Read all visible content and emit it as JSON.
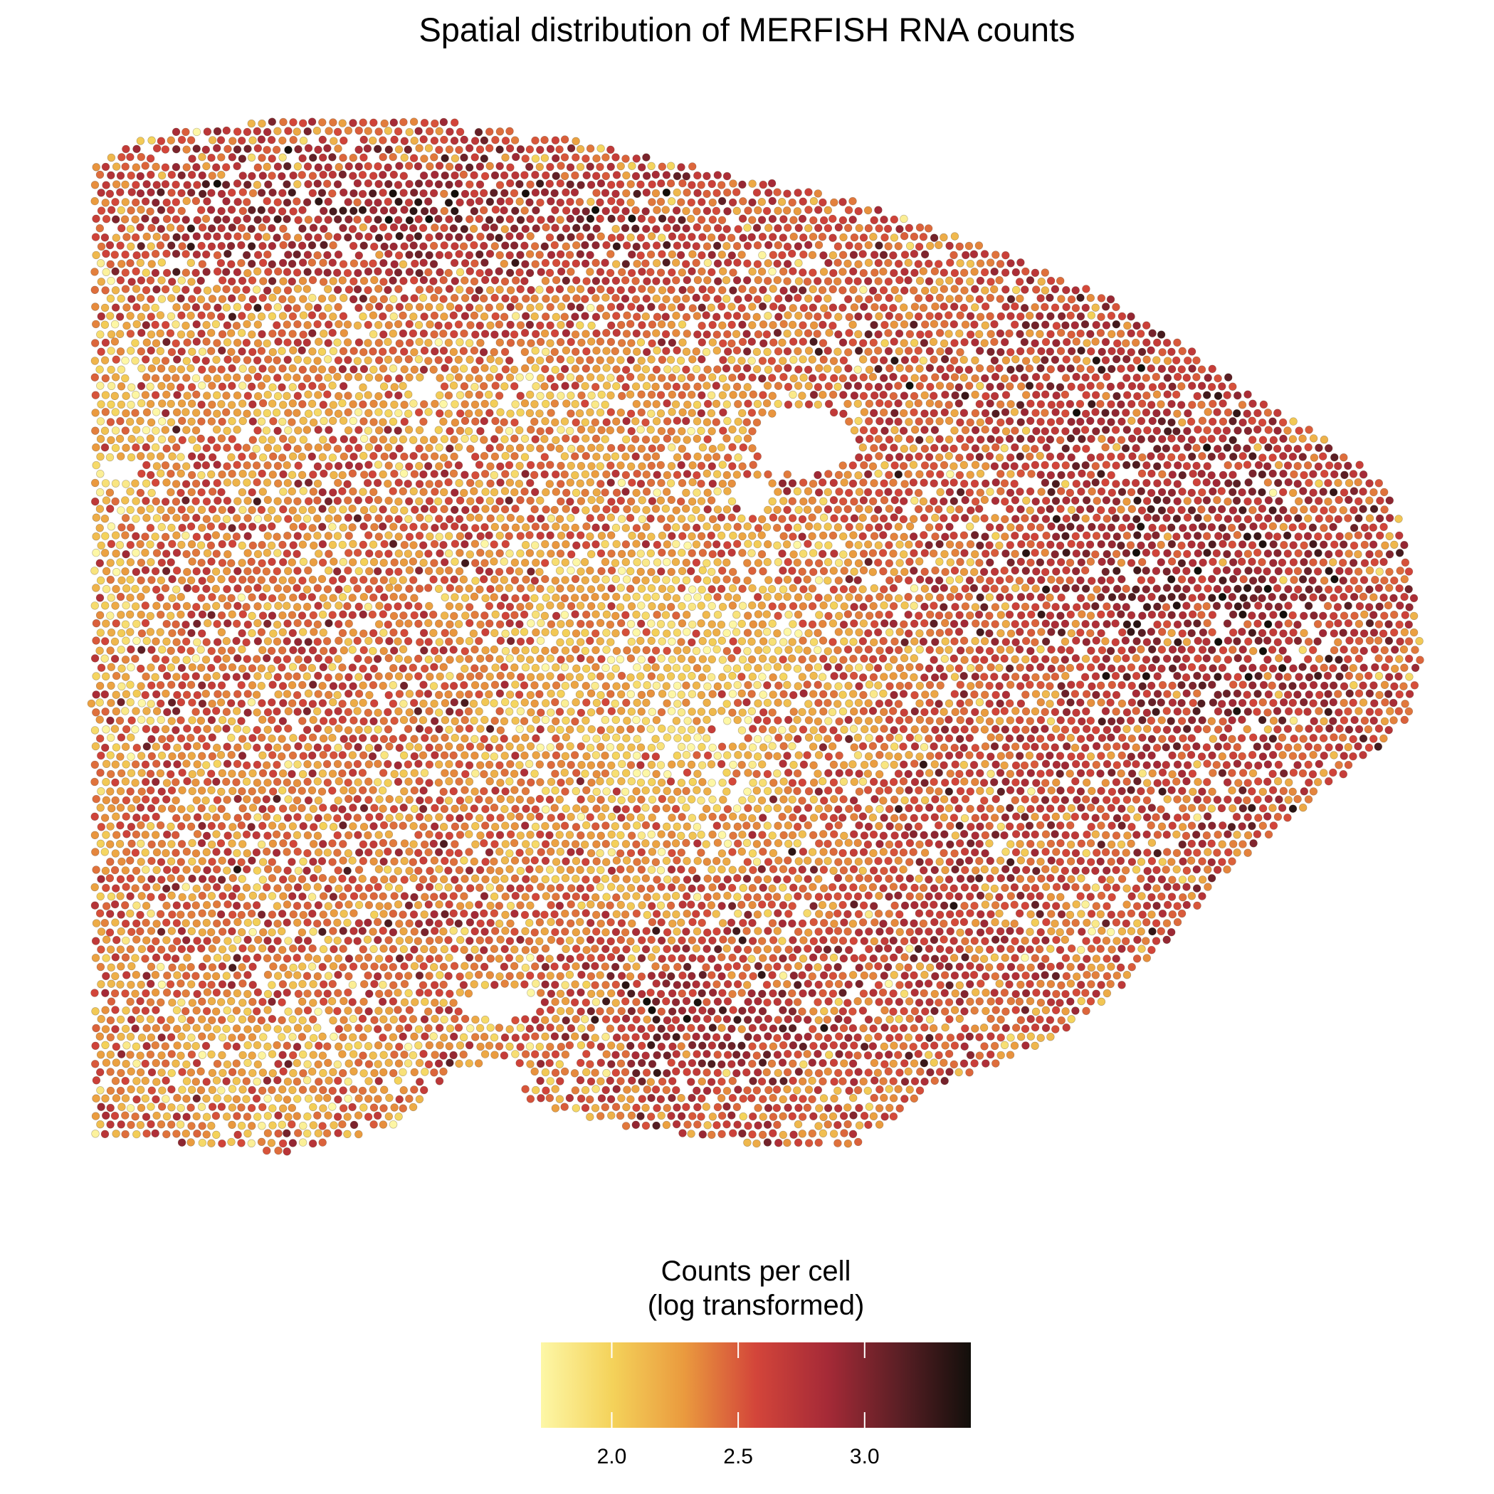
{
  "chart_data": {
    "type": "scatter",
    "title": "Spatial distribution of MERFISH RNA counts",
    "xlabel": "",
    "ylabel": "",
    "axes_visible": false,
    "grid": false,
    "point_count_approx": 7000,
    "color_variable": "Counts per cell (log transformed)",
    "colorbar": {
      "title": "Counts per cell\n(log transformed)",
      "range": [
        1.72,
        3.42
      ],
      "ticks": [
        2.0,
        2.5,
        3.0
      ],
      "tick_labels": [
        "2.0",
        "2.5",
        "3.0"
      ],
      "colormap": "YlOrRd-dark (light yellow → orange → red → near-black)",
      "stops": [
        "#fdf7a6",
        "#f4d25a",
        "#ea9a3e",
        "#d3453a",
        "#a52a37",
        "#5b1f25",
        "#120f0b"
      ],
      "position": "bottom-center",
      "orientation": "horizontal"
    },
    "value_summary": {
      "min_approx": 1.72,
      "max_approx": 3.42,
      "typical_range": [
        2.0,
        3.0
      ],
      "high_regions": [
        "upper-left band",
        "right lobe",
        "lower-center cluster"
      ],
      "low_regions": [
        "central region",
        "left margin band"
      ]
    }
  }
}
